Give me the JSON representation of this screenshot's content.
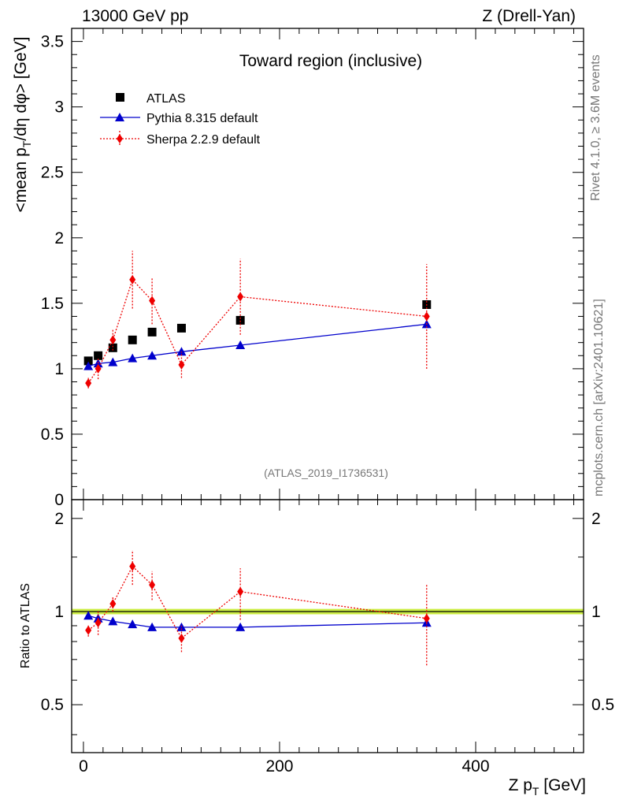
{
  "header": {
    "energy": "13000 GeV pp",
    "process": "Z (Drell-Yan)"
  },
  "side": {
    "rivet": "Rivet 4.1.0, ≥ 3.6M events",
    "source": "mcplots.cern.ch [arXiv:2401.10621]"
  },
  "chart_data": [
    {
      "type": "scatter",
      "title": "Toward region (inclusive)",
      "watermark": "(ATLAS_2019_I1736531)",
      "xlabel": "Z p_T [GeV]",
      "ylabel": "<mean p_T/dη dφ> [GeV]",
      "xlim": [
        -12,
        510
      ],
      "ylim": [
        0,
        3.6
      ],
      "yticks": [
        "0",
        "0.5",
        "1",
        "1.5",
        "2",
        "2.5",
        "3",
        "3.5"
      ],
      "legend": [
        {
          "key": "atlas",
          "label": "ATLAS"
        },
        {
          "key": "pythia",
          "label": "Pythia 8.315 default"
        },
        {
          "key": "sherpa",
          "label": "Sherpa 2.2.9 default"
        }
      ],
      "series": [
        {
          "name": "ATLAS",
          "key": "atlas",
          "color": "#000000",
          "marker": "square",
          "x": [
            5,
            15,
            30,
            50,
            70,
            100,
            160,
            350
          ],
          "y": [
            1.06,
            1.1,
            1.16,
            1.22,
            1.28,
            1.31,
            1.37,
            1.49
          ]
        },
        {
          "name": "Pythia 8.315 default",
          "key": "pythia",
          "color": "#0000cc",
          "marker": "triangle",
          "line": "solid",
          "x": [
            5,
            15,
            30,
            50,
            70,
            100,
            160,
            350
          ],
          "y": [
            1.02,
            1.04,
            1.05,
            1.08,
            1.1,
            1.13,
            1.18,
            1.34
          ]
        },
        {
          "name": "Sherpa 2.2.9 default",
          "key": "sherpa",
          "color": "#ee0000",
          "marker": "diamond",
          "line": "dotted",
          "x": [
            5,
            15,
            30,
            50,
            70,
            100,
            160,
            350
          ],
          "y": [
            0.89,
            1.0,
            1.22,
            1.68,
            1.52,
            1.03,
            1.55,
            1.4
          ],
          "err": [
            0.04,
            0.08,
            0.08,
            0.22,
            0.18,
            0.1,
            0.29,
            0.4
          ]
        }
      ]
    },
    {
      "type": "scatter",
      "ylabel": "Ratio to ATLAS",
      "ylim": [
        0.35,
        2.3
      ],
      "yticks": [
        "0.5",
        "1",
        "2"
      ],
      "xticks": [
        "0",
        "200",
        "400"
      ],
      "reference": {
        "y": 1.0,
        "band": [
          0.98,
          1.02
        ],
        "color": "#ccee44"
      },
      "series": [
        {
          "name": "Pythia 8.315 default",
          "key": "pythia",
          "color": "#0000cc",
          "marker": "triangle",
          "line": "solid",
          "x": [
            5,
            15,
            30,
            50,
            70,
            100,
            160,
            350
          ],
          "y": [
            0.97,
            0.95,
            0.93,
            0.91,
            0.89,
            0.89,
            0.89,
            0.92
          ]
        },
        {
          "name": "Sherpa 2.2.9 default",
          "key": "sherpa",
          "color": "#ee0000",
          "marker": "diamond",
          "line": "dotted",
          "x": [
            5,
            15,
            30,
            50,
            70,
            100,
            160,
            350
          ],
          "y": [
            0.87,
            0.92,
            1.06,
            1.4,
            1.22,
            0.82,
            1.16,
            0.95
          ],
          "err": [
            0.04,
            0.08,
            0.06,
            0.18,
            0.13,
            0.08,
            0.22,
            0.28
          ]
        }
      ]
    }
  ]
}
